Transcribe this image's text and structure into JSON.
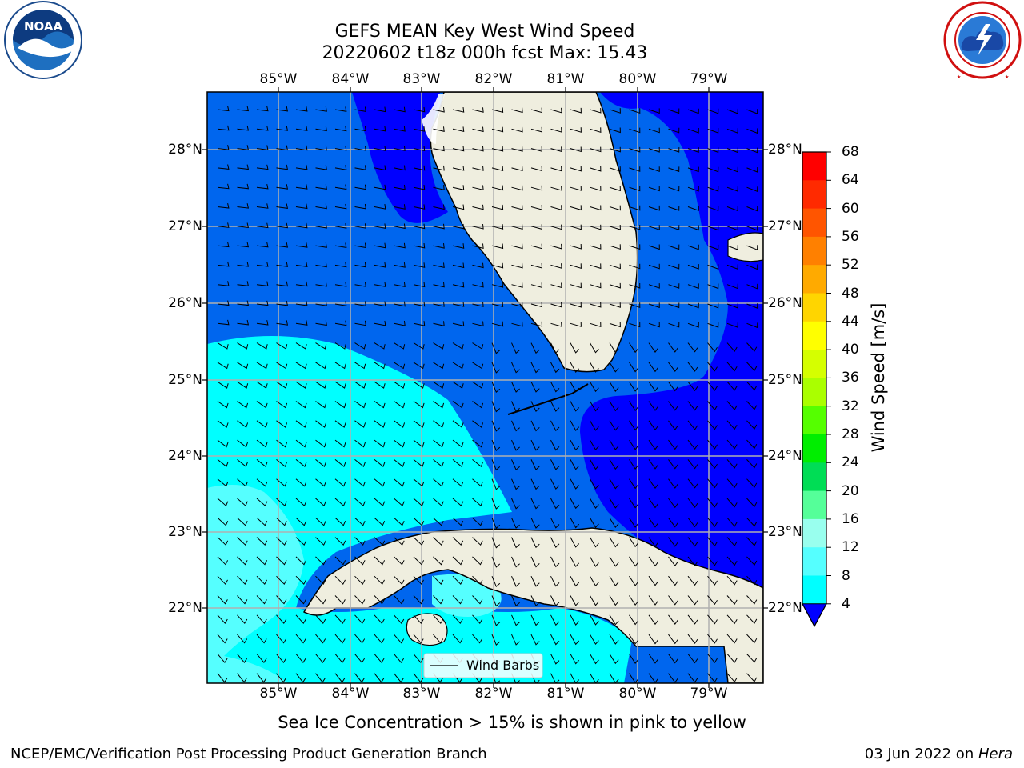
{
  "title": {
    "line1": "GEFS MEAN Key West Wind Speed",
    "line2": "20220602 t18z 000h fcst   Max: 15.43"
  },
  "logos": {
    "left": {
      "text": "NOAA",
      "icon": "noaa-logo"
    },
    "right": {
      "icon": "national-weather-service-logo"
    }
  },
  "map": {
    "lon_labels": [
      "85°W",
      "84°W",
      "83°W",
      "82°W",
      "81°W",
      "80°W",
      "79°W"
    ],
    "lat_labels": [
      "28°N",
      "27°N",
      "26°N",
      "25°N",
      "24°N",
      "23°N",
      "22°N"
    ],
    "legend_label": "Wind Barbs"
  },
  "colorbar": {
    "label": "Wind Speed [m/s]",
    "ticks": [
      "68",
      "64",
      "60",
      "56",
      "52",
      "48",
      "44",
      "40",
      "36",
      "32",
      "28",
      "24",
      "20",
      "16",
      "12",
      "8",
      "4"
    ],
    "colors": [
      "#ff0000",
      "#ff2a00",
      "#ff5500",
      "#ff8000",
      "#ffaa00",
      "#ffd500",
      "#ffff00",
      "#d5ff00",
      "#aaff00",
      "#55ff00",
      "#00ee00",
      "#00dd55",
      "#55ff99",
      "#99ffee",
      "#55ffff",
      "#00ffff",
      "#0099ff",
      "#0066ee"
    ],
    "extend_color": "#0000ff"
  },
  "caption": "Sea Ice Concentration > 15% is shown in pink to yellow",
  "footer": {
    "left": "NCEP/EMC/Verification Post Processing Product Generation Branch",
    "date": "03 Jun 2022 on ",
    "machine": "Hera"
  }
}
